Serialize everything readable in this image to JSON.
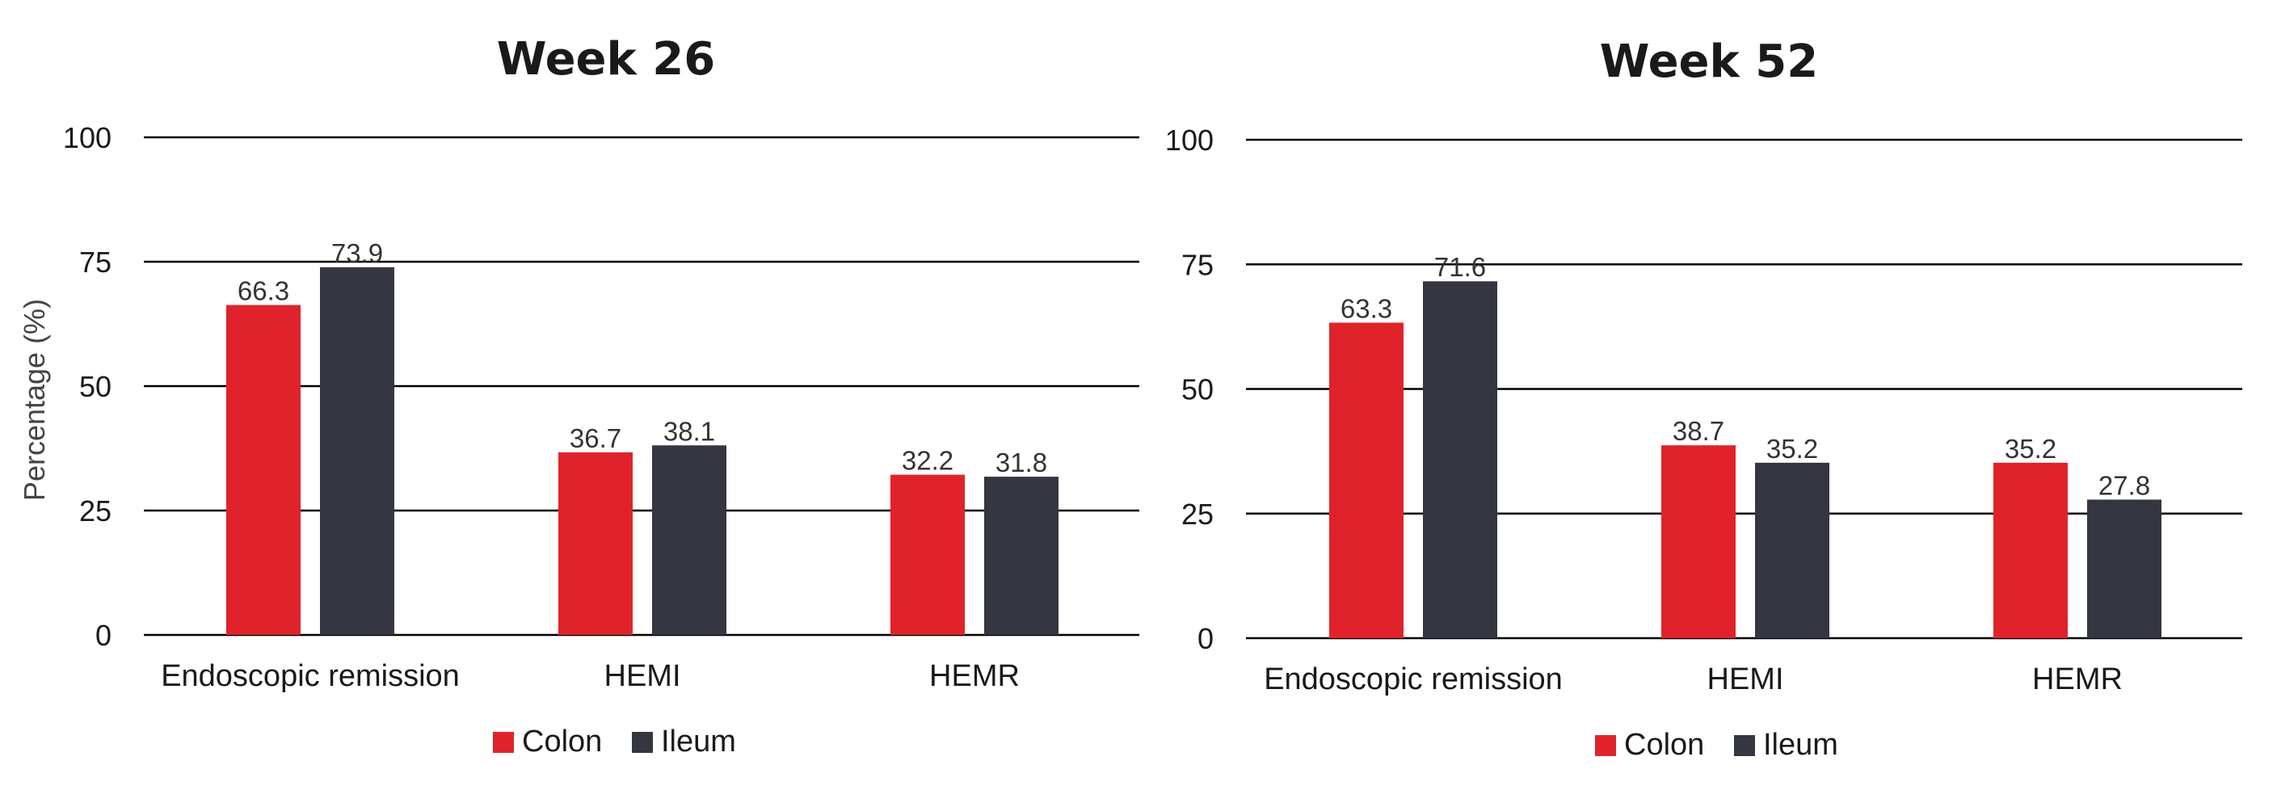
{
  "chart_data": [
    {
      "type": "bar",
      "title": "Week 26",
      "ylabel": "Percentage (%)",
      "ylim": [
        0,
        100
      ],
      "yticks": [
        0,
        25,
        50,
        75,
        100
      ],
      "grid": true,
      "legend_position": "bottom",
      "categories": [
        "Endoscopic remission",
        "HEMI",
        "HEMR"
      ],
      "series": [
        {
          "name": "Colon",
          "color": "#e0232a",
          "values": [
            66.3,
            36.7,
            32.2
          ]
        },
        {
          "name": "Ileum",
          "color": "#343741",
          "values": [
            73.9,
            38.1,
            31.8
          ]
        }
      ]
    },
    {
      "type": "bar",
      "title": "Week 52",
      "ylabel": "",
      "ylim": [
        0,
        100
      ],
      "yticks": [
        0,
        25,
        50,
        75,
        100
      ],
      "grid": true,
      "legend_position": "bottom",
      "categories": [
        "Endoscopic remission",
        "HEMI",
        "HEMR"
      ],
      "series": [
        {
          "name": "Colon",
          "color": "#e0232a",
          "values": [
            63.3,
            38.7,
            35.2
          ]
        },
        {
          "name": "Ileum",
          "color": "#343741",
          "values": [
            71.6,
            35.2,
            27.8
          ]
        }
      ]
    }
  ]
}
